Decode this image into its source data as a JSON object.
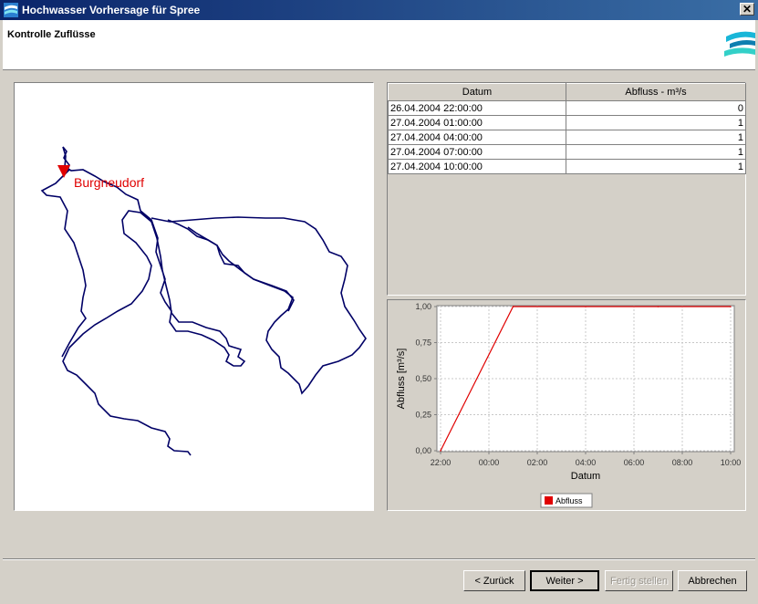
{
  "window": {
    "title": "Hochwasser Vorhersage für Spree",
    "close_label": "✕"
  },
  "header": {
    "page_title": "Kontrolle Zuflüsse"
  },
  "map": {
    "station_label": "Burgneudorf",
    "marker_color": "#e00000",
    "outline_color": "#000066"
  },
  "table": {
    "columns": [
      "Datum",
      "Abfluss - m³/s"
    ],
    "rows": [
      {
        "datum": "26.04.2004 22:00:00",
        "abfluss": "0"
      },
      {
        "datum": "27.04.2004 01:00:00",
        "abfluss": "1"
      },
      {
        "datum": "27.04.2004 04:00:00",
        "abfluss": "1"
      },
      {
        "datum": "27.04.2004 07:00:00",
        "abfluss": "1"
      },
      {
        "datum": "27.04.2004 10:00:00",
        "abfluss": "1"
      }
    ]
  },
  "chart_data": {
    "type": "line",
    "title": "",
    "xlabel": "Datum",
    "ylabel": "Abfluss [m³/s]",
    "x_tick_labels": [
      "22:00",
      "00:00",
      "02:00",
      "04:00",
      "06:00",
      "08:00",
      "10:00"
    ],
    "y_tick_labels": [
      "0,00",
      "0,25",
      "0,50",
      "0,75",
      "1,00"
    ],
    "ylim": [
      0,
      1
    ],
    "grid": true,
    "legend_position": "bottom",
    "series": [
      {
        "name": "Abfluss",
        "color": "#e00000",
        "points": [
          {
            "x": "22:00",
            "y": 0
          },
          {
            "x": "01:00",
            "y": 1
          },
          {
            "x": "04:00",
            "y": 1
          },
          {
            "x": "07:00",
            "y": 1
          },
          {
            "x": "10:00",
            "y": 1
          }
        ]
      }
    ]
  },
  "buttons": {
    "back": "< Zurück",
    "next": "Weiter >",
    "finish": "Fertig stellen",
    "cancel": "Abbrechen"
  }
}
